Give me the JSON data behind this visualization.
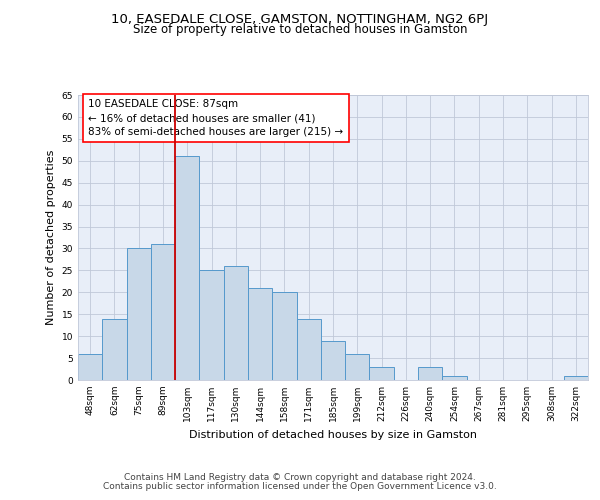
{
  "title": "10, EASEDALE CLOSE, GAMSTON, NOTTINGHAM, NG2 6PJ",
  "subtitle": "Size of property relative to detached houses in Gamston",
  "xlabel": "Distribution of detached houses by size in Gamston",
  "ylabel": "Number of detached properties",
  "bin_labels": [
    "48sqm",
    "62sqm",
    "75sqm",
    "89sqm",
    "103sqm",
    "117sqm",
    "130sqm",
    "144sqm",
    "158sqm",
    "171sqm",
    "185sqm",
    "199sqm",
    "212sqm",
    "226sqm",
    "240sqm",
    "254sqm",
    "267sqm",
    "281sqm",
    "295sqm",
    "308sqm",
    "322sqm"
  ],
  "bar_heights": [
    6,
    14,
    30,
    31,
    51,
    25,
    26,
    21,
    20,
    14,
    9,
    6,
    3,
    0,
    3,
    1,
    0,
    0,
    0,
    0,
    1
  ],
  "bar_color": "#c8d8e8",
  "bar_edge_color": "#5599cc",
  "red_line_x": 3.5,
  "red_line_color": "#cc0000",
  "annotation_text": "10 EASEDALE CLOSE: 87sqm\n← 16% of detached houses are smaller (41)\n83% of semi-detached houses are larger (215) →",
  "annotation_box_color": "white",
  "annotation_box_edge": "red",
  "ylim": [
    0,
    65
  ],
  "yticks": [
    0,
    5,
    10,
    15,
    20,
    25,
    30,
    35,
    40,
    45,
    50,
    55,
    60,
    65
  ],
  "grid_color": "#c0c8d8",
  "background_color": "#e8eef8",
  "footer_line1": "Contains HM Land Registry data © Crown copyright and database right 2024.",
  "footer_line2": "Contains public sector information licensed under the Open Government Licence v3.0.",
  "title_fontsize": 9.5,
  "subtitle_fontsize": 8.5,
  "ylabel_fontsize": 8,
  "xlabel_fontsize": 8,
  "tick_fontsize": 6.5,
  "annotation_fontsize": 7.5,
  "footer_fontsize": 6.5
}
